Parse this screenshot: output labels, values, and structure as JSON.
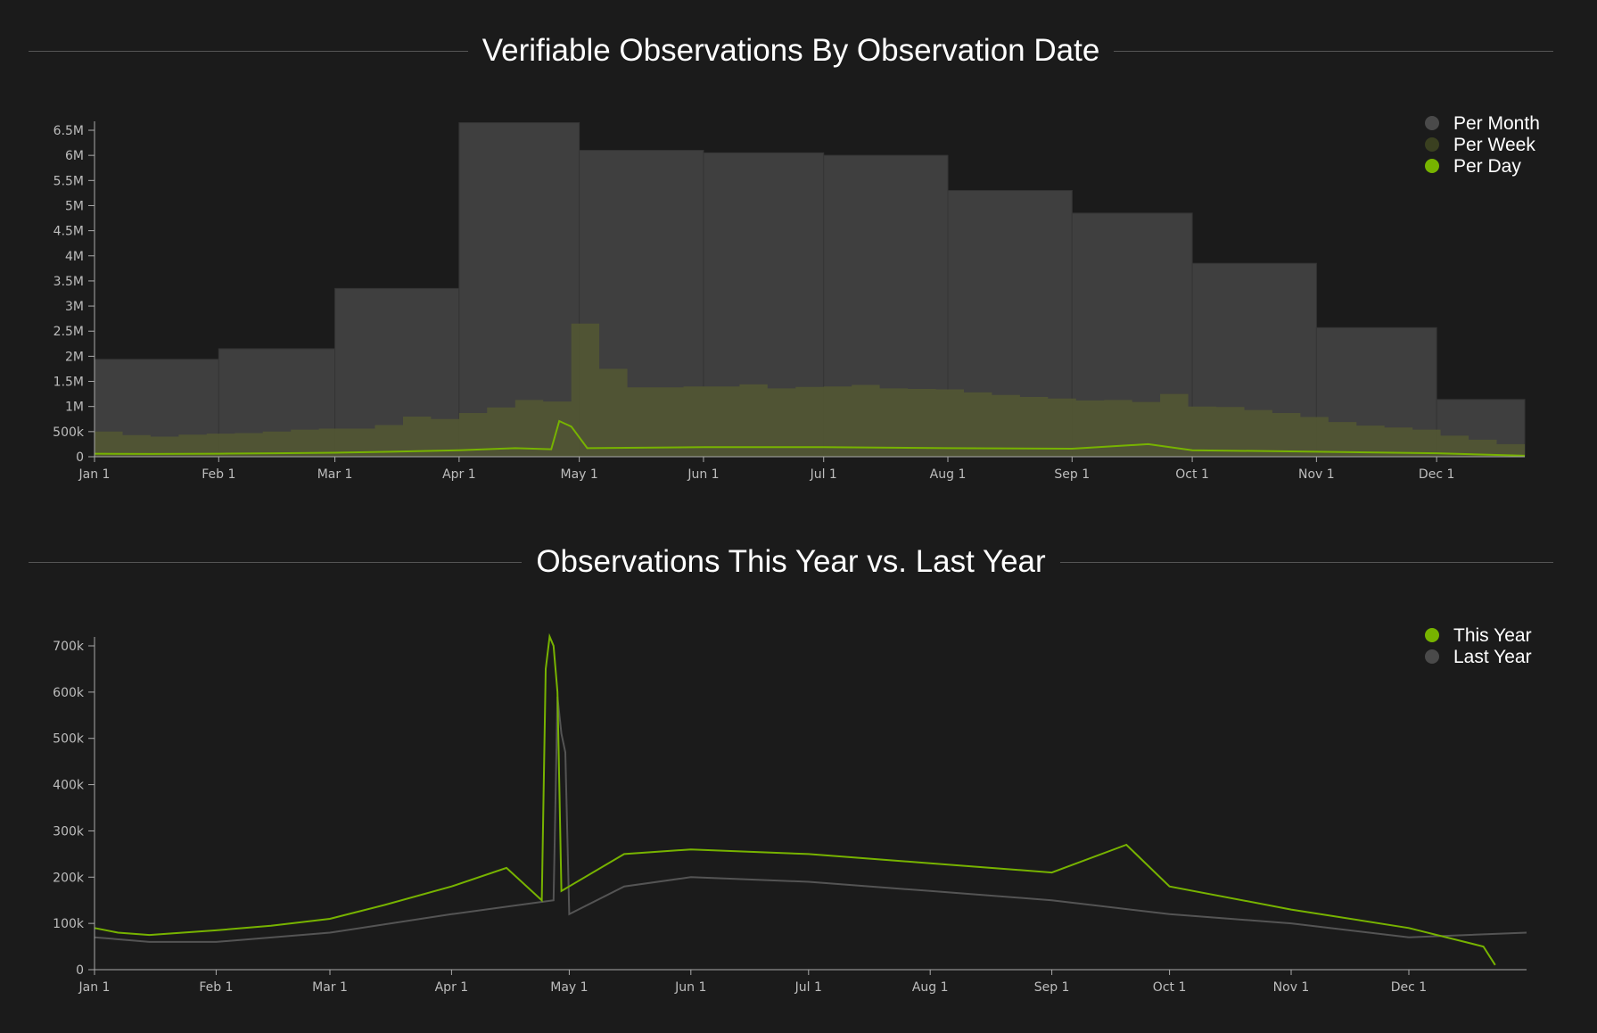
{
  "colors": {
    "background": "#1b1b1b",
    "month_fill": "#3f3f3f",
    "week_fill": "#525733",
    "day_line": "#77b300",
    "this_year_line": "#77b300",
    "last_year_line": "#545454",
    "tick_text": "#bdbdbd",
    "axis": "#aaaaaa"
  },
  "chart_data": [
    {
      "type": "area",
      "title": "Verifiable Observations By Observation Date",
      "xlabel": "",
      "ylabel": "",
      "x_range": [
        "2024-01-01",
        "2024-12-23"
      ],
      "ylim": [
        0,
        6500000
      ],
      "y_ticks": [
        {
          "value": 0,
          "label": "0"
        },
        {
          "value": 500000,
          "label": "500k"
        },
        {
          "value": 1000000,
          "label": "1M"
        },
        {
          "value": 1500000,
          "label": "1.5M"
        },
        {
          "value": 2000000,
          "label": "2M"
        },
        {
          "value": 2500000,
          "label": "2.5M"
        },
        {
          "value": 3000000,
          "label": "3M"
        },
        {
          "value": 3500000,
          "label": "3.5M"
        },
        {
          "value": 4000000,
          "label": "4M"
        },
        {
          "value": 4500000,
          "label": "4.5M"
        },
        {
          "value": 5000000,
          "label": "5M"
        },
        {
          "value": 5500000,
          "label": "5.5M"
        },
        {
          "value": 6000000,
          "label": "6M"
        },
        {
          "value": 6500000,
          "label": "6.5M"
        }
      ],
      "x_ticks": [
        {
          "date": "2024-01-01",
          "label": "Jan 1"
        },
        {
          "date": "2024-02-01",
          "label": "Feb 1"
        },
        {
          "date": "2024-03-01",
          "label": "Mar 1"
        },
        {
          "date": "2024-04-01",
          "label": "Apr 1"
        },
        {
          "date": "2024-05-01",
          "label": "May 1"
        },
        {
          "date": "2024-06-01",
          "label": "Jun 1"
        },
        {
          "date": "2024-07-01",
          "label": "Jul 1"
        },
        {
          "date": "2024-08-01",
          "label": "Aug 1"
        },
        {
          "date": "2024-09-01",
          "label": "Sep 1"
        },
        {
          "date": "2024-10-01",
          "label": "Oct 1"
        },
        {
          "date": "2024-11-01",
          "label": "Nov 1"
        },
        {
          "date": "2024-12-01",
          "label": "Dec 1"
        }
      ],
      "legend": [
        {
          "name": "Per Month",
          "color": "#4a4a4a"
        },
        {
          "name": "Per Week",
          "color": "#3a4020"
        },
        {
          "name": "Per Day",
          "color": "#77b300"
        }
      ],
      "legend_position": "top-right",
      "series": [
        {
          "name": "Per Month",
          "points": [
            {
              "x": "2024-01-01",
              "y": 1940000
            },
            {
              "x": "2024-02-01",
              "y": 2150000
            },
            {
              "x": "2024-03-01",
              "y": 3350000
            },
            {
              "x": "2024-04-01",
              "y": 6650000
            },
            {
              "x": "2024-05-01",
              "y": 6100000
            },
            {
              "x": "2024-06-01",
              "y": 6050000
            },
            {
              "x": "2024-07-01",
              "y": 6000000
            },
            {
              "x": "2024-08-01",
              "y": 5300000
            },
            {
              "x": "2024-09-01",
              "y": 4850000
            },
            {
              "x": "2024-10-01",
              "y": 3850000
            },
            {
              "x": "2024-11-01",
              "y": 2570000
            },
            {
              "x": "2024-12-01",
              "y": 1140000
            }
          ]
        },
        {
          "name": "Per Week",
          "points": [
            {
              "x": "2024-01-01",
              "y": 500000
            },
            {
              "x": "2024-01-08",
              "y": 430000
            },
            {
              "x": "2024-01-15",
              "y": 400000
            },
            {
              "x": "2024-01-22",
              "y": 440000
            },
            {
              "x": "2024-01-29",
              "y": 460000
            },
            {
              "x": "2024-02-05",
              "y": 470000
            },
            {
              "x": "2024-02-12",
              "y": 500000
            },
            {
              "x": "2024-02-19",
              "y": 540000
            },
            {
              "x": "2024-02-26",
              "y": 560000
            },
            {
              "x": "2024-03-04",
              "y": 560000
            },
            {
              "x": "2024-03-11",
              "y": 630000
            },
            {
              "x": "2024-03-18",
              "y": 800000
            },
            {
              "x": "2024-03-25",
              "y": 750000
            },
            {
              "x": "2024-04-01",
              "y": 870000
            },
            {
              "x": "2024-04-08",
              "y": 980000
            },
            {
              "x": "2024-04-15",
              "y": 1130000
            },
            {
              "x": "2024-04-22",
              "y": 1100000
            },
            {
              "x": "2024-04-29",
              "y": 2650000
            },
            {
              "x": "2024-05-06",
              "y": 1750000
            },
            {
              "x": "2024-05-13",
              "y": 1380000
            },
            {
              "x": "2024-05-20",
              "y": 1380000
            },
            {
              "x": "2024-05-27",
              "y": 1400000
            },
            {
              "x": "2024-06-03",
              "y": 1400000
            },
            {
              "x": "2024-06-10",
              "y": 1440000
            },
            {
              "x": "2024-06-17",
              "y": 1360000
            },
            {
              "x": "2024-06-24",
              "y": 1390000
            },
            {
              "x": "2024-07-01",
              "y": 1400000
            },
            {
              "x": "2024-07-08",
              "y": 1430000
            },
            {
              "x": "2024-07-15",
              "y": 1360000
            },
            {
              "x": "2024-07-22",
              "y": 1350000
            },
            {
              "x": "2024-07-29",
              "y": 1340000
            },
            {
              "x": "2024-08-05",
              "y": 1280000
            },
            {
              "x": "2024-08-12",
              "y": 1230000
            },
            {
              "x": "2024-08-19",
              "y": 1190000
            },
            {
              "x": "2024-08-26",
              "y": 1160000
            },
            {
              "x": "2024-09-02",
              "y": 1120000
            },
            {
              "x": "2024-09-09",
              "y": 1130000
            },
            {
              "x": "2024-09-16",
              "y": 1090000
            },
            {
              "x": "2024-09-23",
              "y": 1250000
            },
            {
              "x": "2024-09-30",
              "y": 1000000
            },
            {
              "x": "2024-10-07",
              "y": 990000
            },
            {
              "x": "2024-10-14",
              "y": 930000
            },
            {
              "x": "2024-10-21",
              "y": 870000
            },
            {
              "x": "2024-10-28",
              "y": 790000
            },
            {
              "x": "2024-11-04",
              "y": 690000
            },
            {
              "x": "2024-11-11",
              "y": 620000
            },
            {
              "x": "2024-11-18",
              "y": 580000
            },
            {
              "x": "2024-11-25",
              "y": 540000
            },
            {
              "x": "2024-12-02",
              "y": 420000
            },
            {
              "x": "2024-12-09",
              "y": 340000
            },
            {
              "x": "2024-12-16",
              "y": 250000
            }
          ]
        },
        {
          "name": "Per Day",
          "points": [
            {
              "x": "2024-01-01",
              "y": 60000
            },
            {
              "x": "2024-01-15",
              "y": 55000
            },
            {
              "x": "2024-02-01",
              "y": 60000
            },
            {
              "x": "2024-02-15",
              "y": 70000
            },
            {
              "x": "2024-03-01",
              "y": 80000
            },
            {
              "x": "2024-03-15",
              "y": 100000
            },
            {
              "x": "2024-04-01",
              "y": 130000
            },
            {
              "x": "2024-04-15",
              "y": 170000
            },
            {
              "x": "2024-04-24",
              "y": 150000
            },
            {
              "x": "2024-04-26",
              "y": 710000
            },
            {
              "x": "2024-04-29",
              "y": 600000
            },
            {
              "x": "2024-05-03",
              "y": 170000
            },
            {
              "x": "2024-06-01",
              "y": 190000
            },
            {
              "x": "2024-07-01",
              "y": 190000
            },
            {
              "x": "2024-08-01",
              "y": 170000
            },
            {
              "x": "2024-09-01",
              "y": 160000
            },
            {
              "x": "2024-09-20",
              "y": 250000
            },
            {
              "x": "2024-10-01",
              "y": 130000
            },
            {
              "x": "2024-11-01",
              "y": 100000
            },
            {
              "x": "2024-12-01",
              "y": 70000
            },
            {
              "x": "2024-12-23",
              "y": 20000
            }
          ]
        }
      ]
    },
    {
      "type": "line",
      "title": "Observations This Year vs. Last Year",
      "xlabel": "",
      "ylabel": "",
      "x_range": [
        "2024-01-01",
        "2024-12-31"
      ],
      "ylim": [
        0,
        700000
      ],
      "y_ticks": [
        {
          "value": 0,
          "label": "0"
        },
        {
          "value": 100000,
          "label": "100k"
        },
        {
          "value": 200000,
          "label": "200k"
        },
        {
          "value": 300000,
          "label": "300k"
        },
        {
          "value": 400000,
          "label": "400k"
        },
        {
          "value": 500000,
          "label": "500k"
        },
        {
          "value": 600000,
          "label": "600k"
        },
        {
          "value": 700000,
          "label": "700k"
        }
      ],
      "x_ticks": [
        {
          "date": "2024-01-01",
          "label": "Jan 1"
        },
        {
          "date": "2024-02-01",
          "label": "Feb 1"
        },
        {
          "date": "2024-03-01",
          "label": "Mar 1"
        },
        {
          "date": "2024-04-01",
          "label": "Apr 1"
        },
        {
          "date": "2024-05-01",
          "label": "May 1"
        },
        {
          "date": "2024-06-01",
          "label": "Jun 1"
        },
        {
          "date": "2024-07-01",
          "label": "Jul 1"
        },
        {
          "date": "2024-08-01",
          "label": "Aug 1"
        },
        {
          "date": "2024-09-01",
          "label": "Sep 1"
        },
        {
          "date": "2024-10-01",
          "label": "Oct 1"
        },
        {
          "date": "2024-11-01",
          "label": "Nov 1"
        },
        {
          "date": "2024-12-01",
          "label": "Dec 1"
        }
      ],
      "legend": [
        {
          "name": "This Year",
          "color": "#77b300"
        },
        {
          "name": "Last Year",
          "color": "#4a4a4a"
        }
      ],
      "legend_position": "top-right",
      "series": [
        {
          "name": "This Year",
          "points": [
            {
              "x": "2024-01-01",
              "y": 90000
            },
            {
              "x": "2024-01-07",
              "y": 80000
            },
            {
              "x": "2024-01-15",
              "y": 75000
            },
            {
              "x": "2024-02-01",
              "y": 85000
            },
            {
              "x": "2024-02-15",
              "y": 95000
            },
            {
              "x": "2024-03-01",
              "y": 110000
            },
            {
              "x": "2024-03-15",
              "y": 140000
            },
            {
              "x": "2024-04-01",
              "y": 180000
            },
            {
              "x": "2024-04-15",
              "y": 220000
            },
            {
              "x": "2024-04-24",
              "y": 150000
            },
            {
              "x": "2024-04-25",
              "y": 650000
            },
            {
              "x": "2024-04-26",
              "y": 720000
            },
            {
              "x": "2024-04-27",
              "y": 700000
            },
            {
              "x": "2024-04-28",
              "y": 600000
            },
            {
              "x": "2024-04-29",
              "y": 170000
            },
            {
              "x": "2024-05-15",
              "y": 250000
            },
            {
              "x": "2024-06-01",
              "y": 260000
            },
            {
              "x": "2024-07-01",
              "y": 250000
            },
            {
              "x": "2024-08-01",
              "y": 230000
            },
            {
              "x": "2024-09-01",
              "y": 210000
            },
            {
              "x": "2024-09-20",
              "y": 270000
            },
            {
              "x": "2024-10-01",
              "y": 180000
            },
            {
              "x": "2024-11-01",
              "y": 130000
            },
            {
              "x": "2024-12-01",
              "y": 90000
            },
            {
              "x": "2024-12-20",
              "y": 50000
            },
            {
              "x": "2024-12-23",
              "y": 10000
            }
          ]
        },
        {
          "name": "Last Year",
          "points": [
            {
              "x": "2024-01-01",
              "y": 70000
            },
            {
              "x": "2024-01-15",
              "y": 60000
            },
            {
              "x": "2024-02-01",
              "y": 60000
            },
            {
              "x": "2024-03-01",
              "y": 80000
            },
            {
              "x": "2024-04-01",
              "y": 120000
            },
            {
              "x": "2024-04-27",
              "y": 150000
            },
            {
              "x": "2024-04-28",
              "y": 590000
            },
            {
              "x": "2024-04-29",
              "y": 510000
            },
            {
              "x": "2024-04-30",
              "y": 470000
            },
            {
              "x": "2024-05-01",
              "y": 120000
            },
            {
              "x": "2024-05-15",
              "y": 180000
            },
            {
              "x": "2024-06-01",
              "y": 200000
            },
            {
              "x": "2024-07-01",
              "y": 190000
            },
            {
              "x": "2024-08-01",
              "y": 170000
            },
            {
              "x": "2024-09-01",
              "y": 150000
            },
            {
              "x": "2024-10-01",
              "y": 120000
            },
            {
              "x": "2024-11-01",
              "y": 100000
            },
            {
              "x": "2024-12-01",
              "y": 70000
            },
            {
              "x": "2024-12-31",
              "y": 80000
            }
          ]
        }
      ]
    }
  ]
}
